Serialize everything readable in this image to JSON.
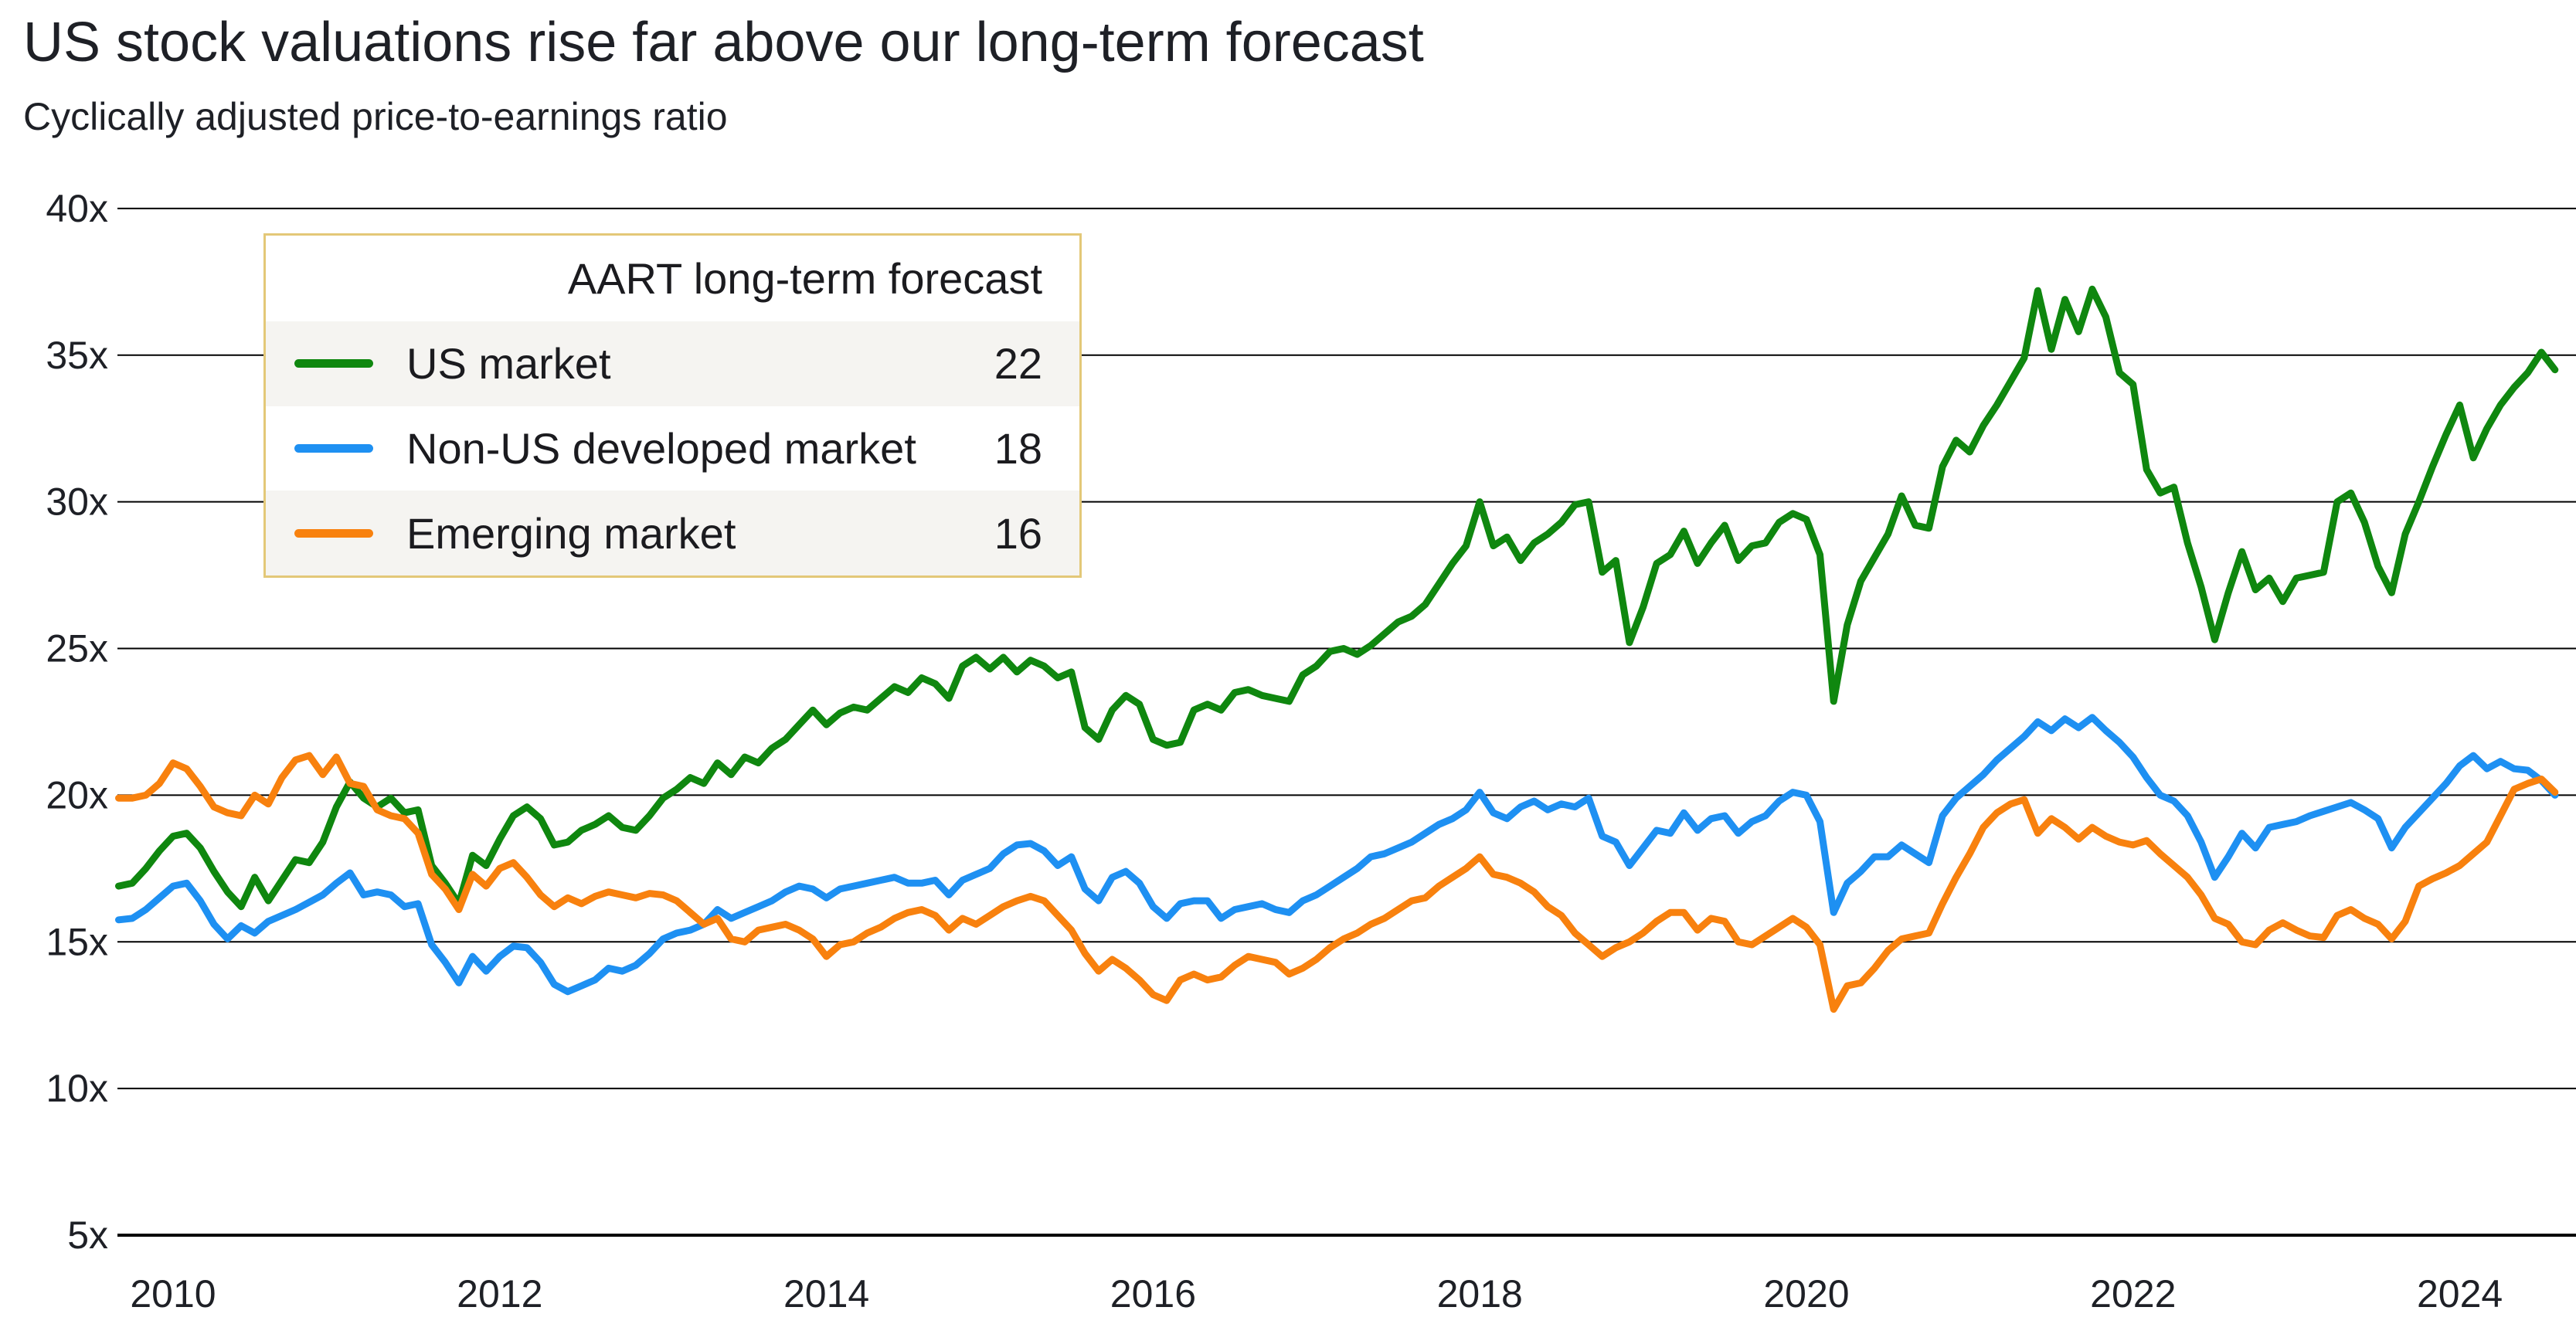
{
  "colors": {
    "us_market": "#0f870f",
    "non_us_developed": "#1e90f2",
    "emerging": "#f8810e",
    "legend_border": "#e3c878",
    "legend_stripe": "#f5f4f1",
    "gridline": "#000000",
    "text": "#1e2026"
  },
  "chart_data": {
    "type": "line",
    "title": "US stock valuations rise far above our long-term forecast",
    "subtitle": "Cyclically adjusted price-to-earnings ratio",
    "grid": "horizontal",
    "xlim": [
      2009.58,
      2024.75
    ],
    "ylim": [
      5,
      40
    ],
    "x_unit": "decimal year, monthly step",
    "x_start": 2009.6667,
    "x_step": 0.08333,
    "legend": {
      "title": "AART long-term forecast",
      "position": "top-left"
    },
    "y_ticks": [
      {
        "value": 40,
        "label": "40x"
      },
      {
        "value": 35,
        "label": "35x"
      },
      {
        "value": 30,
        "label": "30x"
      },
      {
        "value": 25,
        "label": "25x"
      },
      {
        "value": 20,
        "label": "20x"
      },
      {
        "value": 15,
        "label": "15x"
      },
      {
        "value": 10,
        "label": "10x"
      },
      {
        "value": 5,
        "label": "5x"
      }
    ],
    "x_ticks": [
      {
        "value": 2010,
        "label": "2010"
      },
      {
        "value": 2012,
        "label": "2012"
      },
      {
        "value": 2014,
        "label": "2014"
      },
      {
        "value": 2016,
        "label": "2016"
      },
      {
        "value": 2018,
        "label": "2018"
      },
      {
        "value": 2020,
        "label": "2020"
      },
      {
        "value": 2022,
        "label": "2022"
      },
      {
        "value": 2024,
        "label": "2024"
      }
    ],
    "series": [
      {
        "name": "US market",
        "forecast": 22,
        "color": "#0f870f",
        "values": [
          16.9,
          17.0,
          17.5,
          18.1,
          18.6,
          18.7,
          18.2,
          17.4,
          16.7,
          16.2,
          17.2,
          16.4,
          17.1,
          17.8,
          17.7,
          18.4,
          19.6,
          20.45,
          19.9,
          19.6,
          19.9,
          19.4,
          19.5,
          17.6,
          17.0,
          16.3,
          17.95,
          17.6,
          18.5,
          19.3,
          19.6,
          19.2,
          18.3,
          18.4,
          18.8,
          19.0,
          19.3,
          18.9,
          18.8,
          19.3,
          19.9,
          20.2,
          20.6,
          20.4,
          21.1,
          20.7,
          21.3,
          21.1,
          21.6,
          21.9,
          22.4,
          22.9,
          22.4,
          22.8,
          23.0,
          22.9,
          23.3,
          23.7,
          23.5,
          24.0,
          23.8,
          23.3,
          24.4,
          24.7,
          24.3,
          24.7,
          24.2,
          24.6,
          24.4,
          24.0,
          24.2,
          22.3,
          21.9,
          22.9,
          23.4,
          23.1,
          21.9,
          21.7,
          21.8,
          22.9,
          23.1,
          22.9,
          23.5,
          23.6,
          23.4,
          23.3,
          23.2,
          24.1,
          24.4,
          24.9,
          25.0,
          24.8,
          25.1,
          25.5,
          25.9,
          26.1,
          26.5,
          27.2,
          27.9,
          28.5,
          30.0,
          28.5,
          28.8,
          28.0,
          28.6,
          28.9,
          29.3,
          29.9,
          30.0,
          27.6,
          28.0,
          25.2,
          26.4,
          27.9,
          28.2,
          29.0,
          27.9,
          28.6,
          29.2,
          28.0,
          28.5,
          28.6,
          29.3,
          29.6,
          29.4,
          28.2,
          23.2,
          25.8,
          27.3,
          28.1,
          28.9,
          30.2,
          29.2,
          29.1,
          31.2,
          32.1,
          31.7,
          32.6,
          33.3,
          34.1,
          34.9,
          37.2,
          35.2,
          36.9,
          35.8,
          37.25,
          36.3,
          34.4,
          34.0,
          31.1,
          30.3,
          30.5,
          28.6,
          27.1,
          25.3,
          26.9,
          28.3,
          27.0,
          27.4,
          26.6,
          27.4,
          27.5,
          27.6,
          30.0,
          30.3,
          29.3,
          27.8,
          26.9,
          28.9,
          30.0,
          31.2,
          32.3,
          33.3,
          31.5,
          32.5,
          33.3,
          33.9,
          34.4,
          35.1,
          34.5
        ]
      },
      {
        "name": "Non-US developed market",
        "forecast": 18,
        "color": "#1e90f2",
        "values": [
          15.75,
          15.8,
          16.1,
          16.5,
          16.9,
          17.0,
          16.4,
          15.6,
          15.1,
          15.55,
          15.3,
          15.7,
          15.9,
          16.1,
          16.35,
          16.6,
          17.0,
          17.35,
          16.6,
          16.7,
          16.6,
          16.2,
          16.3,
          14.9,
          14.3,
          13.6,
          14.5,
          14.0,
          14.5,
          14.85,
          14.8,
          14.3,
          13.55,
          13.3,
          13.5,
          13.7,
          14.1,
          14.0,
          14.2,
          14.6,
          15.1,
          15.3,
          15.4,
          15.6,
          16.1,
          15.8,
          16.0,
          16.2,
          16.4,
          16.7,
          16.9,
          16.8,
          16.5,
          16.8,
          16.9,
          17.0,
          17.1,
          17.2,
          17.0,
          17.0,
          17.1,
          16.6,
          17.1,
          17.3,
          17.5,
          18.0,
          18.3,
          18.35,
          18.1,
          17.6,
          17.9,
          16.8,
          16.4,
          17.2,
          17.4,
          17.0,
          16.2,
          15.8,
          16.3,
          16.4,
          16.4,
          15.8,
          16.1,
          16.2,
          16.3,
          16.1,
          16.0,
          16.4,
          16.6,
          16.9,
          17.2,
          17.5,
          17.9,
          18.0,
          18.2,
          18.4,
          18.7,
          19.0,
          19.2,
          19.5,
          20.1,
          19.4,
          19.2,
          19.6,
          19.8,
          19.5,
          19.7,
          19.6,
          19.9,
          18.6,
          18.4,
          17.6,
          18.2,
          18.8,
          18.7,
          19.4,
          18.8,
          19.2,
          19.3,
          18.7,
          19.1,
          19.3,
          19.8,
          20.1,
          20.0,
          19.1,
          16.0,
          17.0,
          17.4,
          17.9,
          17.9,
          18.3,
          18.0,
          17.7,
          19.3,
          19.9,
          20.3,
          20.7,
          21.2,
          21.6,
          22.0,
          22.5,
          22.2,
          22.6,
          22.3,
          22.65,
          22.2,
          21.8,
          21.3,
          20.6,
          20.0,
          19.8,
          19.3,
          18.4,
          17.2,
          17.9,
          18.7,
          18.2,
          18.9,
          19.0,
          19.1,
          19.3,
          19.45,
          19.6,
          19.75,
          19.5,
          19.2,
          18.2,
          18.9,
          19.4,
          19.9,
          20.4,
          21.0,
          21.35,
          20.9,
          21.15,
          20.9,
          20.85,
          20.5,
          20.0
        ]
      },
      {
        "name": "Emerging market",
        "forecast": 16,
        "color": "#f8810e",
        "values": [
          19.9,
          19.9,
          20.0,
          20.4,
          21.1,
          20.9,
          20.3,
          19.6,
          19.4,
          19.3,
          20.0,
          19.7,
          20.6,
          21.2,
          21.35,
          20.7,
          21.3,
          20.4,
          20.3,
          19.5,
          19.3,
          19.2,
          18.7,
          17.3,
          16.8,
          16.1,
          17.3,
          16.9,
          17.5,
          17.7,
          17.2,
          16.6,
          16.2,
          16.5,
          16.3,
          16.55,
          16.7,
          16.6,
          16.5,
          16.65,
          16.6,
          16.4,
          16.0,
          15.6,
          15.8,
          15.1,
          15.0,
          15.4,
          15.5,
          15.6,
          15.4,
          15.1,
          14.5,
          14.9,
          15.0,
          15.3,
          15.5,
          15.8,
          16.0,
          16.1,
          15.9,
          15.4,
          15.8,
          15.6,
          15.9,
          16.2,
          16.4,
          16.55,
          16.4,
          15.9,
          15.4,
          14.6,
          14.0,
          14.4,
          14.1,
          13.7,
          13.2,
          13.0,
          13.7,
          13.9,
          13.7,
          13.8,
          14.2,
          14.5,
          14.4,
          14.3,
          13.9,
          14.1,
          14.4,
          14.8,
          15.1,
          15.3,
          15.6,
          15.8,
          16.1,
          16.4,
          16.5,
          16.9,
          17.2,
          17.5,
          17.9,
          17.3,
          17.2,
          17.0,
          16.7,
          16.2,
          15.9,
          15.3,
          14.9,
          14.5,
          14.8,
          15.0,
          15.3,
          15.7,
          16.0,
          16.0,
          15.4,
          15.8,
          15.7,
          15.0,
          14.9,
          15.2,
          15.5,
          15.8,
          15.5,
          14.9,
          12.7,
          13.5,
          13.6,
          14.1,
          14.7,
          15.1,
          15.2,
          15.3,
          16.3,
          17.2,
          18.0,
          18.9,
          19.4,
          19.7,
          19.85,
          18.7,
          19.2,
          18.9,
          18.5,
          18.9,
          18.6,
          18.4,
          18.3,
          18.45,
          18.0,
          17.6,
          17.2,
          16.6,
          15.8,
          15.6,
          15.0,
          14.9,
          15.4,
          15.65,
          15.4,
          15.2,
          15.15,
          15.9,
          16.1,
          15.8,
          15.6,
          15.1,
          15.7,
          16.9,
          17.15,
          17.35,
          17.6,
          18.0,
          18.4,
          19.3,
          20.2,
          20.4,
          20.55,
          20.1
        ]
      }
    ]
  }
}
